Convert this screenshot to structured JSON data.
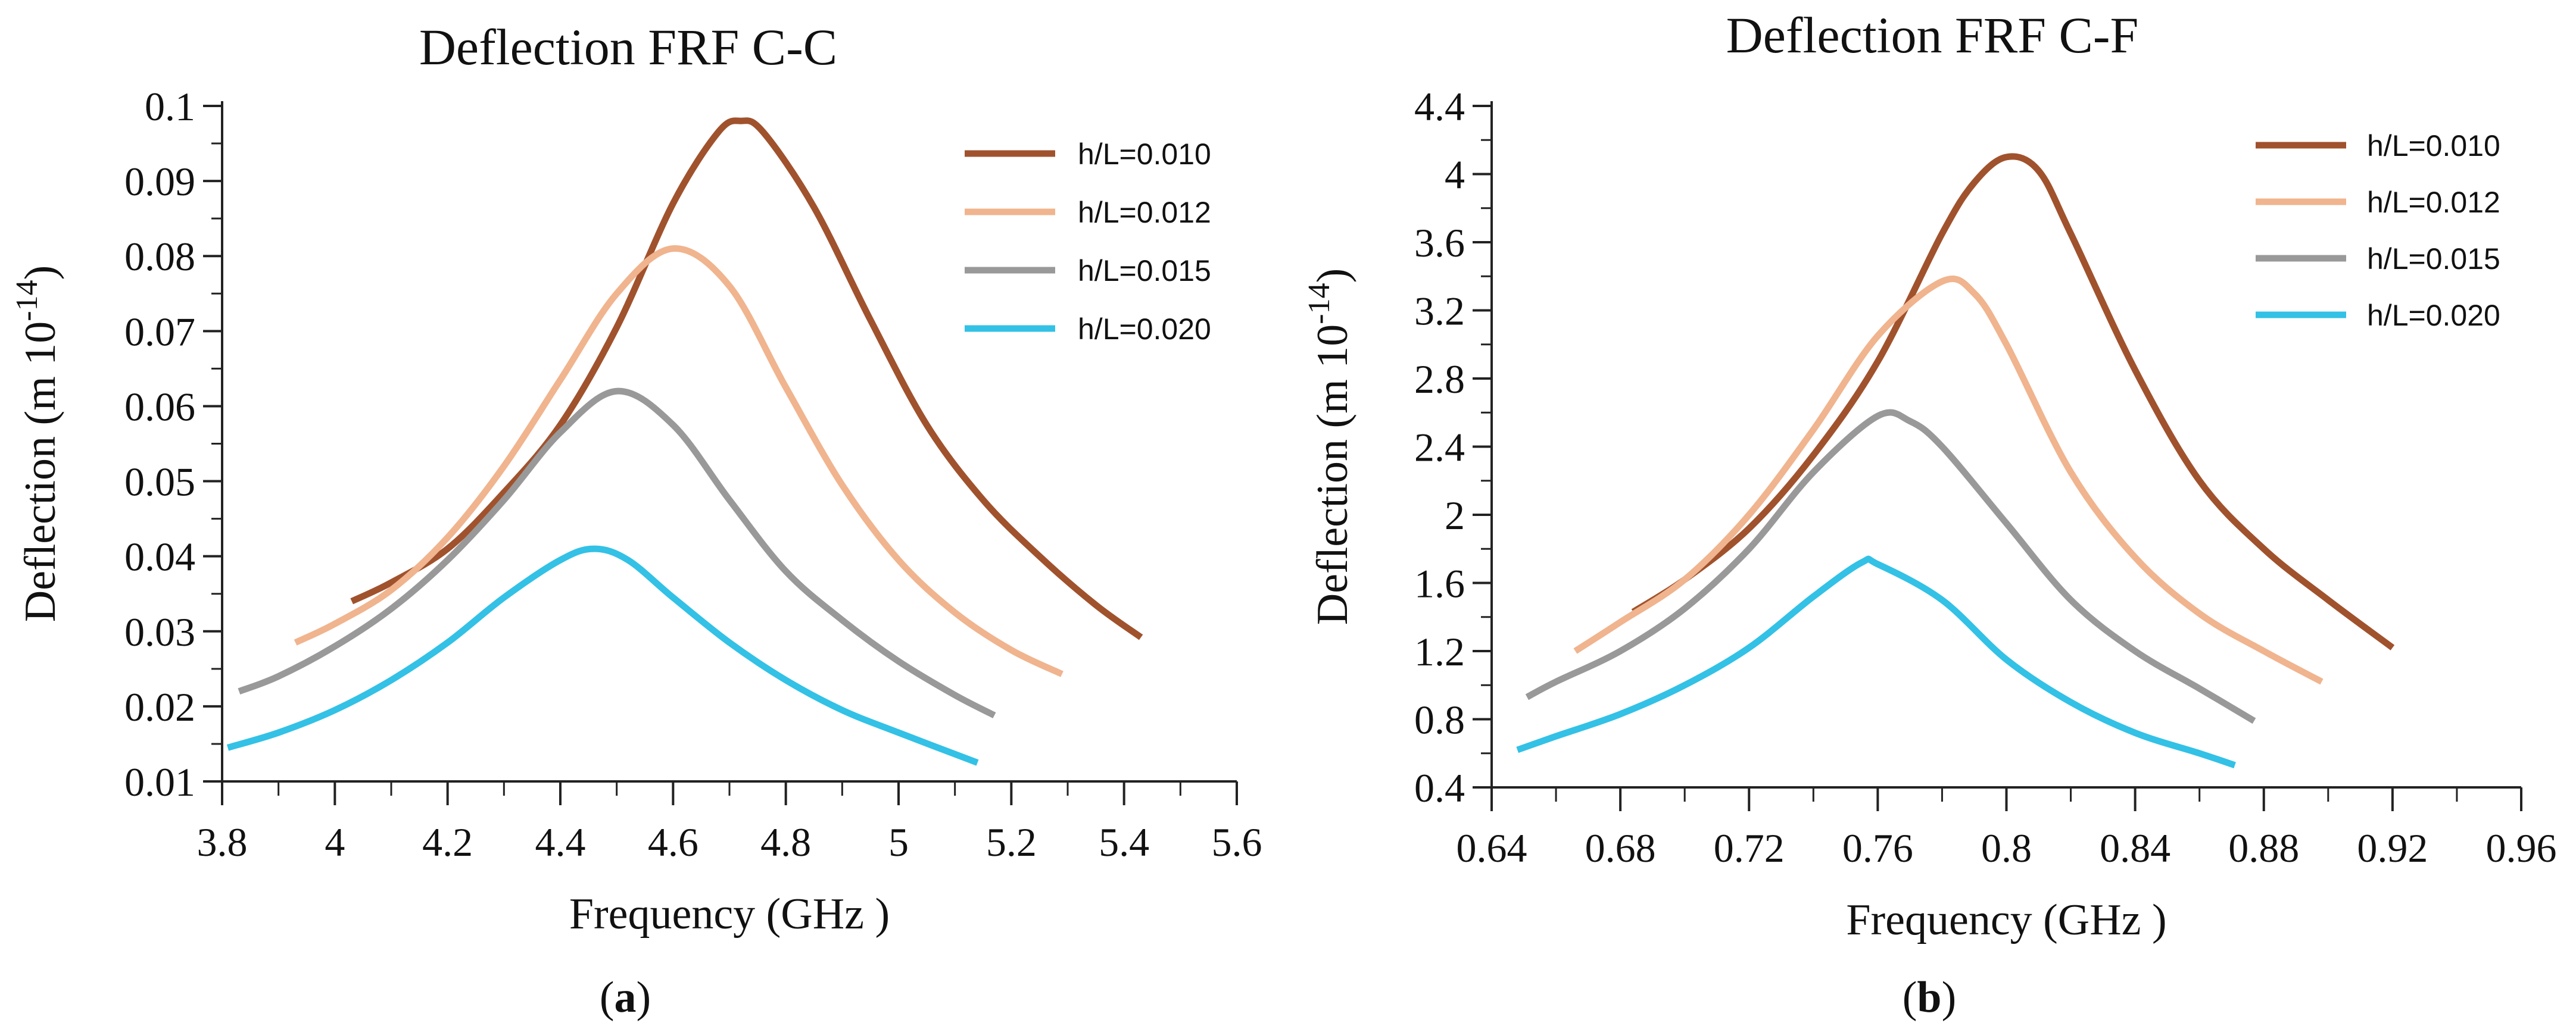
{
  "chart_data": [
    {
      "type": "line",
      "panel_label": "a",
      "title": "Deflection FRF  C-C",
      "xlabel": "Frequency (GHz )",
      "ylabel_main": "Deflection (m 10",
      "ylabel_exp": "-14",
      "ylabel_close": ")",
      "xlim": [
        3.8,
        5.6
      ],
      "ylim": [
        0.01,
        0.1
      ],
      "xticks": [
        3.8,
        4.0,
        4.2,
        4.4,
        4.6,
        4.8,
        5.0,
        5.2,
        5.4,
        5.6
      ],
      "xtick_labels": [
        "3.8",
        "4",
        "4.2",
        "4.4",
        "4.6",
        "4.8",
        "5",
        "5.2",
        "5.4",
        "5.6"
      ],
      "yticks": [
        0.01,
        0.02,
        0.03,
        0.04,
        0.05,
        0.06,
        0.07,
        0.08,
        0.09,
        0.1
      ],
      "ytick_labels": [
        "0.01",
        "0.02",
        "0.03",
        "0.04",
        "0.05",
        "0.06",
        "0.07",
        "0.08",
        "0.09",
        "0.1"
      ],
      "legend_position": "top-right",
      "series": [
        {
          "name": "h/L=0.010",
          "color": "#A0522D",
          "points": [
            [
              4.03,
              0.034
            ],
            [
              4.1,
              0.0365
            ],
            [
              4.2,
              0.041
            ],
            [
              4.3,
              0.0485
            ],
            [
              4.4,
              0.0575
            ],
            [
              4.5,
              0.0705
            ],
            [
              4.6,
              0.087
            ],
            [
              4.68,
              0.0965
            ],
            [
              4.72,
              0.098
            ],
            [
              4.76,
              0.0965
            ],
            [
              4.85,
              0.0865
            ],
            [
              4.95,
              0.0715
            ],
            [
              5.05,
              0.0575
            ],
            [
              5.15,
              0.0475
            ],
            [
              5.25,
              0.04
            ],
            [
              5.35,
              0.0335
            ],
            [
              5.43,
              0.0292
            ]
          ]
        },
        {
          "name": "h/L=0.012",
          "color": "#F0B48E",
          "points": [
            [
              3.93,
              0.0285
            ],
            [
              4.0,
              0.031
            ],
            [
              4.1,
              0.0355
            ],
            [
              4.2,
              0.0425
            ],
            [
              4.3,
              0.052
            ],
            [
              4.4,
              0.0635
            ],
            [
              4.5,
              0.075
            ],
            [
              4.6,
              0.081
            ],
            [
              4.7,
              0.076
            ],
            [
              4.8,
              0.0625
            ],
            [
              4.9,
              0.0495
            ],
            [
              5.0,
              0.0395
            ],
            [
              5.1,
              0.0325
            ],
            [
              5.2,
              0.0275
            ],
            [
              5.29,
              0.0243
            ]
          ]
        },
        {
          "name": "h/L=0.015",
          "color": "#999999",
          "points": [
            [
              3.83,
              0.022
            ],
            [
              3.9,
              0.024
            ],
            [
              4.0,
              0.028
            ],
            [
              4.1,
              0.033
            ],
            [
              4.2,
              0.0395
            ],
            [
              4.3,
              0.0475
            ],
            [
              4.4,
              0.0565
            ],
            [
              4.5,
              0.062
            ],
            [
              4.6,
              0.0575
            ],
            [
              4.7,
              0.0475
            ],
            [
              4.8,
              0.038
            ],
            [
              4.9,
              0.0315
            ],
            [
              5.0,
              0.026
            ],
            [
              5.1,
              0.0215
            ],
            [
              5.17,
              0.0188
            ]
          ]
        },
        {
          "name": "h/L=0.020",
          "color": "#33C1E6",
          "points": [
            [
              3.81,
              0.0145
            ],
            [
              3.9,
              0.0165
            ],
            [
              4.0,
              0.0195
            ],
            [
              4.1,
              0.0235
            ],
            [
              4.2,
              0.0285
            ],
            [
              4.3,
              0.0345
            ],
            [
              4.4,
              0.0395
            ],
            [
              4.46,
              0.041
            ],
            [
              4.52,
              0.0395
            ],
            [
              4.6,
              0.0345
            ],
            [
              4.7,
              0.0285
            ],
            [
              4.8,
              0.0235
            ],
            [
              4.9,
              0.0195
            ],
            [
              5.0,
              0.0165
            ],
            [
              5.14,
              0.0125
            ]
          ]
        }
      ]
    },
    {
      "type": "line",
      "panel_label": "b",
      "title": "Deflection FRF  C-F",
      "xlabel": "Frequency (GHz )",
      "ylabel_main": "Deflection (m 10",
      "ylabel_exp": "-14",
      "ylabel_close": ")",
      "xlim": [
        0.64,
        0.96
      ],
      "ylim": [
        0.4,
        4.4
      ],
      "xticks": [
        0.64,
        0.68,
        0.72,
        0.76,
        0.8,
        0.84,
        0.88,
        0.92,
        0.96
      ],
      "xtick_labels": [
        "0.64",
        "0.68",
        "0.72",
        "0.76",
        "0.8",
        "0.84",
        "0.88",
        "0.92",
        "0.96"
      ],
      "yticks": [
        0.4,
        0.8,
        1.2,
        1.6,
        2.0,
        2.4,
        2.8,
        3.2,
        3.6,
        4.0,
        4.4
      ],
      "ytick_labels": [
        "0.4",
        "0.8",
        "1.2",
        "1.6",
        "2",
        "2.4",
        "2.8",
        "3.2",
        "3.6",
        "4",
        "4.4"
      ],
      "legend_position": "top-right",
      "series": [
        {
          "name": "h/L=0.010",
          "color": "#A0522D",
          "points": [
            [
              0.684,
              1.43
            ],
            [
              0.7,
              1.62
            ],
            [
              0.72,
              1.92
            ],
            [
              0.74,
              2.35
            ],
            [
              0.76,
              2.9
            ],
            [
              0.78,
              3.65
            ],
            [
              0.79,
              3.95
            ],
            [
              0.8,
              4.1
            ],
            [
              0.81,
              4.02
            ],
            [
              0.82,
              3.65
            ],
            [
              0.84,
              2.85
            ],
            [
              0.86,
              2.2
            ],
            [
              0.88,
              1.8
            ],
            [
              0.9,
              1.5
            ],
            [
              0.92,
              1.22
            ]
          ]
        },
        {
          "name": "h/L=0.012",
          "color": "#F0B48E",
          "points": [
            [
              0.666,
              1.2
            ],
            [
              0.68,
              1.37
            ],
            [
              0.7,
              1.62
            ],
            [
              0.72,
              2.0
            ],
            [
              0.74,
              2.5
            ],
            [
              0.76,
              3.05
            ],
            [
              0.78,
              3.37
            ],
            [
              0.79,
              3.3
            ],
            [
              0.8,
              3.0
            ],
            [
              0.82,
              2.25
            ],
            [
              0.84,
              1.75
            ],
            [
              0.86,
              1.42
            ],
            [
              0.88,
              1.2
            ],
            [
              0.898,
              1.02
            ]
          ]
        },
        {
          "name": "h/L=0.015",
          "color": "#999999",
          "points": [
            [
              0.651,
              0.93
            ],
            [
              0.66,
              1.02
            ],
            [
              0.68,
              1.2
            ],
            [
              0.7,
              1.45
            ],
            [
              0.72,
              1.8
            ],
            [
              0.74,
              2.25
            ],
            [
              0.76,
              2.58
            ],
            [
              0.77,
              2.55
            ],
            [
              0.78,
              2.4
            ],
            [
              0.8,
              1.95
            ],
            [
              0.82,
              1.5
            ],
            [
              0.84,
              1.2
            ],
            [
              0.86,
              0.98
            ],
            [
              0.877,
              0.79
            ]
          ]
        },
        {
          "name": "h/L=0.020",
          "color": "#33C1E6",
          "points": [
            [
              0.648,
              0.62
            ],
            [
              0.66,
              0.7
            ],
            [
              0.68,
              0.83
            ],
            [
              0.7,
              1.0
            ],
            [
              0.72,
              1.22
            ],
            [
              0.74,
              1.52
            ],
            [
              0.755,
              1.72
            ],
            [
              0.76,
              1.71
            ],
            [
              0.78,
              1.5
            ],
            [
              0.8,
              1.15
            ],
            [
              0.82,
              0.9
            ],
            [
              0.84,
              0.72
            ],
            [
              0.86,
              0.6
            ],
            [
              0.871,
              0.53
            ]
          ]
        }
      ]
    }
  ]
}
